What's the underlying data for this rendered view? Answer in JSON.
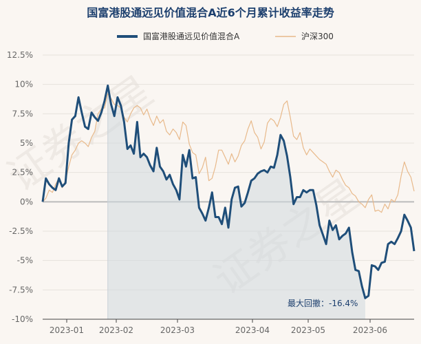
{
  "chart_data": {
    "type": "line",
    "title": "国富港股通远见价值混合A近6个月累计收益率走势",
    "watermark": [
      "证券之星",
      "证券之星"
    ],
    "legend_position": "top",
    "ylim": [
      -10,
      12.5
    ],
    "yticks": [
      12.5,
      10,
      7.5,
      5,
      2.5,
      0,
      -2.5,
      -5,
      -7.5,
      -10
    ],
    "ytick_labels": [
      "12.5%",
      "10%",
      "7.5%",
      "5%",
      "2.5%",
      "0%",
      "-2.5%",
      "-5%",
      "-7.5%",
      "-10%"
    ],
    "xtick_labels": [
      "2023-01",
      "2023-02",
      "2023-03",
      "2023-04",
      "2023-05",
      "2023-06"
    ],
    "grid": "horizontal",
    "annotation": "最大回撤：-16.4%",
    "series": [
      {
        "name": "国富港股通远见价值混合A",
        "color": "#1f4e79",
        "values": [
          0.0,
          2.0,
          1.5,
          1.2,
          1.0,
          2.0,
          1.3,
          1.6,
          5.0,
          7.0,
          7.3,
          8.9,
          7.6,
          6.4,
          6.2,
          7.6,
          7.2,
          6.9,
          7.6,
          8.6,
          9.9,
          8.3,
          7.3,
          8.9,
          8.2,
          6.8,
          4.5,
          4.8,
          4.1,
          6.8,
          3.8,
          4.1,
          3.8,
          3.1,
          2.6,
          4.6,
          3.0,
          2.6,
          1.9,
          2.3,
          1.5,
          1.0,
          0.2,
          4.0,
          3.0,
          4.4,
          2.0,
          2.1,
          -0.5,
          -1.0,
          -1.6,
          -0.5,
          0.8,
          -1.3,
          -1.3,
          -1.9,
          -0.5,
          -2.2,
          0.2,
          1.2,
          1.3,
          -0.4,
          -0.1,
          0.8,
          1.8,
          2.0,
          2.4,
          2.6,
          2.7,
          2.5,
          3.0,
          2.9,
          4.0,
          5.7,
          5.2,
          3.9,
          2.1,
          -0.2,
          0.4,
          0.4,
          1.0,
          0.8,
          1.0,
          1.0,
          -0.3,
          -2.0,
          -2.8,
          -3.6,
          -1.6,
          -2.4,
          -2.0,
          -3.2,
          -2.9,
          -2.7,
          -2.2,
          -4.3,
          -5.8,
          -5.9,
          -7.2,
          -8.2,
          -8.0,
          -5.4,
          -5.5,
          -5.8,
          -5.2,
          -5.1,
          -3.6,
          -3.4,
          -3.6,
          -3.1,
          -2.5,
          -1.1,
          -1.6,
          -2.2,
          -4.2
        ]
      },
      {
        "name": "沪深300",
        "color": "#e8b98a",
        "values": [
          0.0,
          0.3,
          1.0,
          0.8,
          1.5,
          2.0,
          1.2,
          1.8,
          3.0,
          4.0,
          4.4,
          5.0,
          5.2,
          5.0,
          4.7,
          5.5,
          6.0,
          7.5,
          7.9,
          8.0,
          9.2,
          8.8,
          8.3,
          8.2,
          8.0,
          7.2,
          6.8,
          7.5,
          8.0,
          8.2,
          8.0,
          7.4,
          7.9,
          7.1,
          6.5,
          7.3,
          6.7,
          7.0,
          6.0,
          5.7,
          6.2,
          5.9,
          5.3,
          6.8,
          6.5,
          4.9,
          4.2,
          4.0,
          2.4,
          2.9,
          3.8,
          1.8,
          2.0,
          3.0,
          4.4,
          4.4,
          3.8,
          3.2,
          4.1,
          3.4,
          3.9,
          4.8,
          5.2,
          6.2,
          6.9,
          5.9,
          5.5,
          4.5,
          5.1,
          6.7,
          7.1,
          6.9,
          6.4,
          7.2,
          8.3,
          8.6,
          7.2,
          5.6,
          5.3,
          5.9,
          4.6,
          4.0,
          4.5,
          4.2,
          3.9,
          3.6,
          3.4,
          3.2,
          2.6,
          2.1,
          2.7,
          2.5,
          1.9,
          1.4,
          1.2,
          0.7,
          0.5,
          0.0,
          -0.2,
          -0.5,
          0.2,
          0.6,
          -0.8,
          -0.7,
          -0.9,
          -0.2,
          -0.6,
          0.2,
          0.0,
          0.6,
          2.2,
          3.4,
          2.6,
          2.1,
          0.9
        ]
      }
    ]
  }
}
